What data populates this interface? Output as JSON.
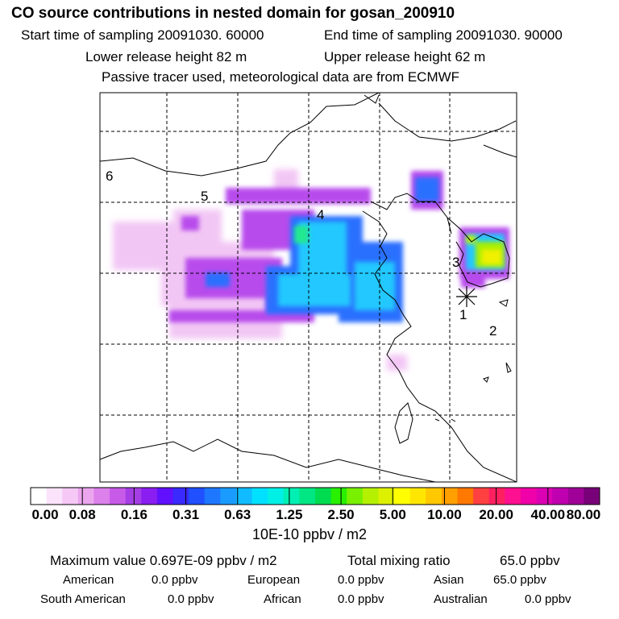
{
  "header": {
    "title": "CO  source contributions in nested domain for gosan_200910",
    "start": "Start time of sampling 20091030. 60000",
    "end": "End time of sampling 20091030. 90000",
    "lower": "Lower release height   82 m",
    "upper": "Upper release height   62 m",
    "tracer": "Passive tracer used, meteorological data are from ECMWF"
  },
  "chart_data": {
    "type": "heatmap",
    "title": "CO  source contributions in nested domain for gosan_200910",
    "colorbar_unit": "10E-10 ppbv / m2",
    "colorbar_ticks": [
      "0.00",
      "0.08",
      "0.16",
      "0.31",
      "0.63",
      "1.25",
      "2.50",
      "5.00",
      "10.00",
      "20.00",
      "40.00",
      "80.00"
    ],
    "region_labels": [
      "1",
      "2",
      "3",
      "4",
      "5",
      "6"
    ],
    "colors": [
      "#ffffff",
      "#fbe4fb",
      "#f5c8f5",
      "#eba6ee",
      "#dc80ec",
      "#c85ae8",
      "#a63ee6",
      "#8a1ef0",
      "#6010ff",
      "#3a2aff",
      "#2050ff",
      "#1e78ff",
      "#1a9cff",
      "#10bcff",
      "#00e0ff",
      "#00f0e6",
      "#00f0b4",
      "#00e682",
      "#00dc50",
      "#28f000",
      "#78f000",
      "#b4f000",
      "#dcf000",
      "#ffff00",
      "#ffe600",
      "#ffc800",
      "#ffa000",
      "#ff7800",
      "#ff4040",
      "#ff2060",
      "#ff1090",
      "#f000a8",
      "#dc00b4",
      "#c000b0",
      "#a00098",
      "#780078"
    ]
  },
  "stats": {
    "max_label": "Maximum value  0.697E-09 ppbv / m2",
    "total_label": "Total mixing ratio",
    "total_value": "65.0 ppbv",
    "american_label": "American",
    "american_value": "0.0 ppbv",
    "european_label": "European",
    "european_value": "0.0 ppbv",
    "asian_label": "Asian",
    "asian_value": "65.0 ppbv",
    "south_american_label": "South American",
    "south_american_value": "0.0 ppbv",
    "african_label": "African",
    "african_value": "0.0 ppbv",
    "australian_label": "Australian",
    "australian_value": "0.0 ppbv"
  }
}
